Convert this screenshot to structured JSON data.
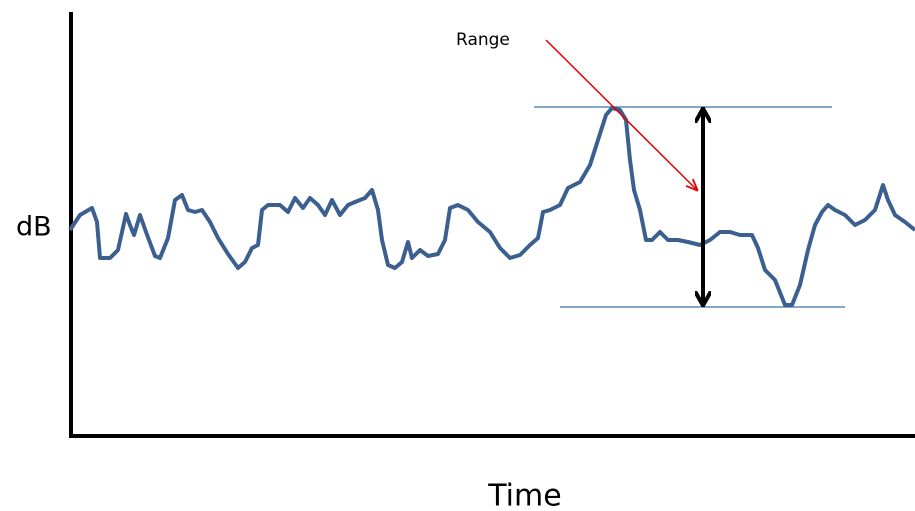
{
  "annotation": "Range",
  "y_label": "dB",
  "x_label": "Time"
}
